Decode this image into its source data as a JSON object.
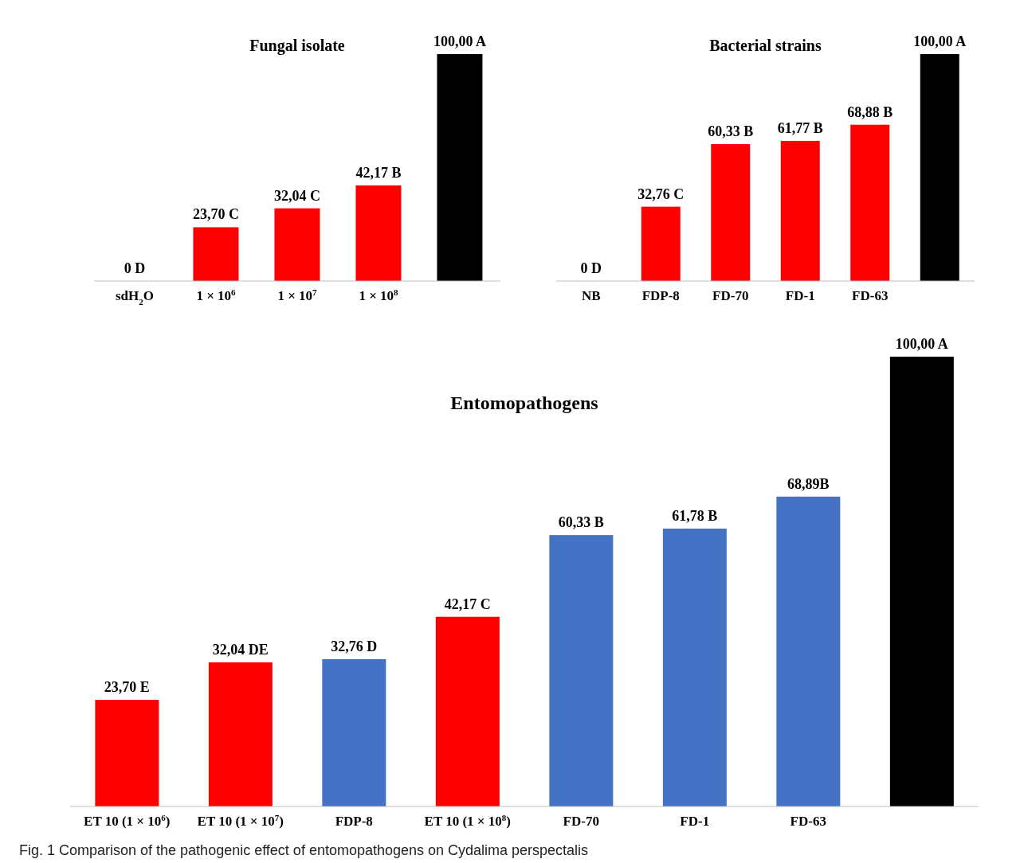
{
  "chart_data": [
    {
      "type": "bar",
      "title": "Fungal isolate",
      "categories": [
        "sdH$_{2}$O",
        "1 × 10$^{6}$",
        "1 × 10$^{7}$",
        "1 × 10$^{8}$",
        null
      ],
      "values": [
        0,
        23.7,
        32.04,
        42.17,
        100.0
      ],
      "colors": [
        "#ff0000",
        "#ff0000",
        "#ff0000",
        "#ff0000",
        "#000000"
      ],
      "value_labels": [
        "0 D",
        "23,70 C",
        "32,04 C",
        "42,17 B",
        "100,00 A"
      ]
    },
    {
      "type": "bar",
      "title": "Bacterial strains",
      "categories": [
        "NB",
        "FDP-8",
        "FD-70",
        "FD-1",
        "FD-63",
        null
      ],
      "values": [
        0,
        32.76,
        60.33,
        61.77,
        68.88,
        100.0
      ],
      "colors": [
        "#ff0000",
        "#ff0000",
        "#ff0000",
        "#ff0000",
        "#ff0000",
        "#000000"
      ],
      "value_labels": [
        "0 D",
        "32,76 C",
        "60,33 B",
        "61,77 B",
        "68,88 B",
        "100,00 A"
      ]
    },
    {
      "type": "bar",
      "title": "Entomopathogens",
      "categories": [
        "ET 10 (1 × 10$^{6}$)",
        "ET 10 (1 × 10$^{7}$)",
        "FDP-8",
        "ET 10 (1 × 10$^{8}$)",
        "FD-70",
        "FD-1",
        "FD-63",
        null
      ],
      "values": [
        23.7,
        32.04,
        32.76,
        42.17,
        60.33,
        61.78,
        68.89,
        100.0
      ],
      "colors": [
        "#ff0000",
        "#ff0000",
        "#4472c4",
        "#ff0000",
        "#4472c4",
        "#4472c4",
        "#4472c4",
        "#000000"
      ],
      "value_labels": [
        "23,70 E",
        "32,04 DE",
        "32,76 D",
        "42,17 C",
        "60,33 B",
        "61,78 B",
        "68,89B",
        "100,00 A"
      ],
      "annotations": [
        "Fig. 1 Comparison of the pathogenic effect of entomopathogens on Cydalima perspectalis"
      ]
    }
  ]
}
